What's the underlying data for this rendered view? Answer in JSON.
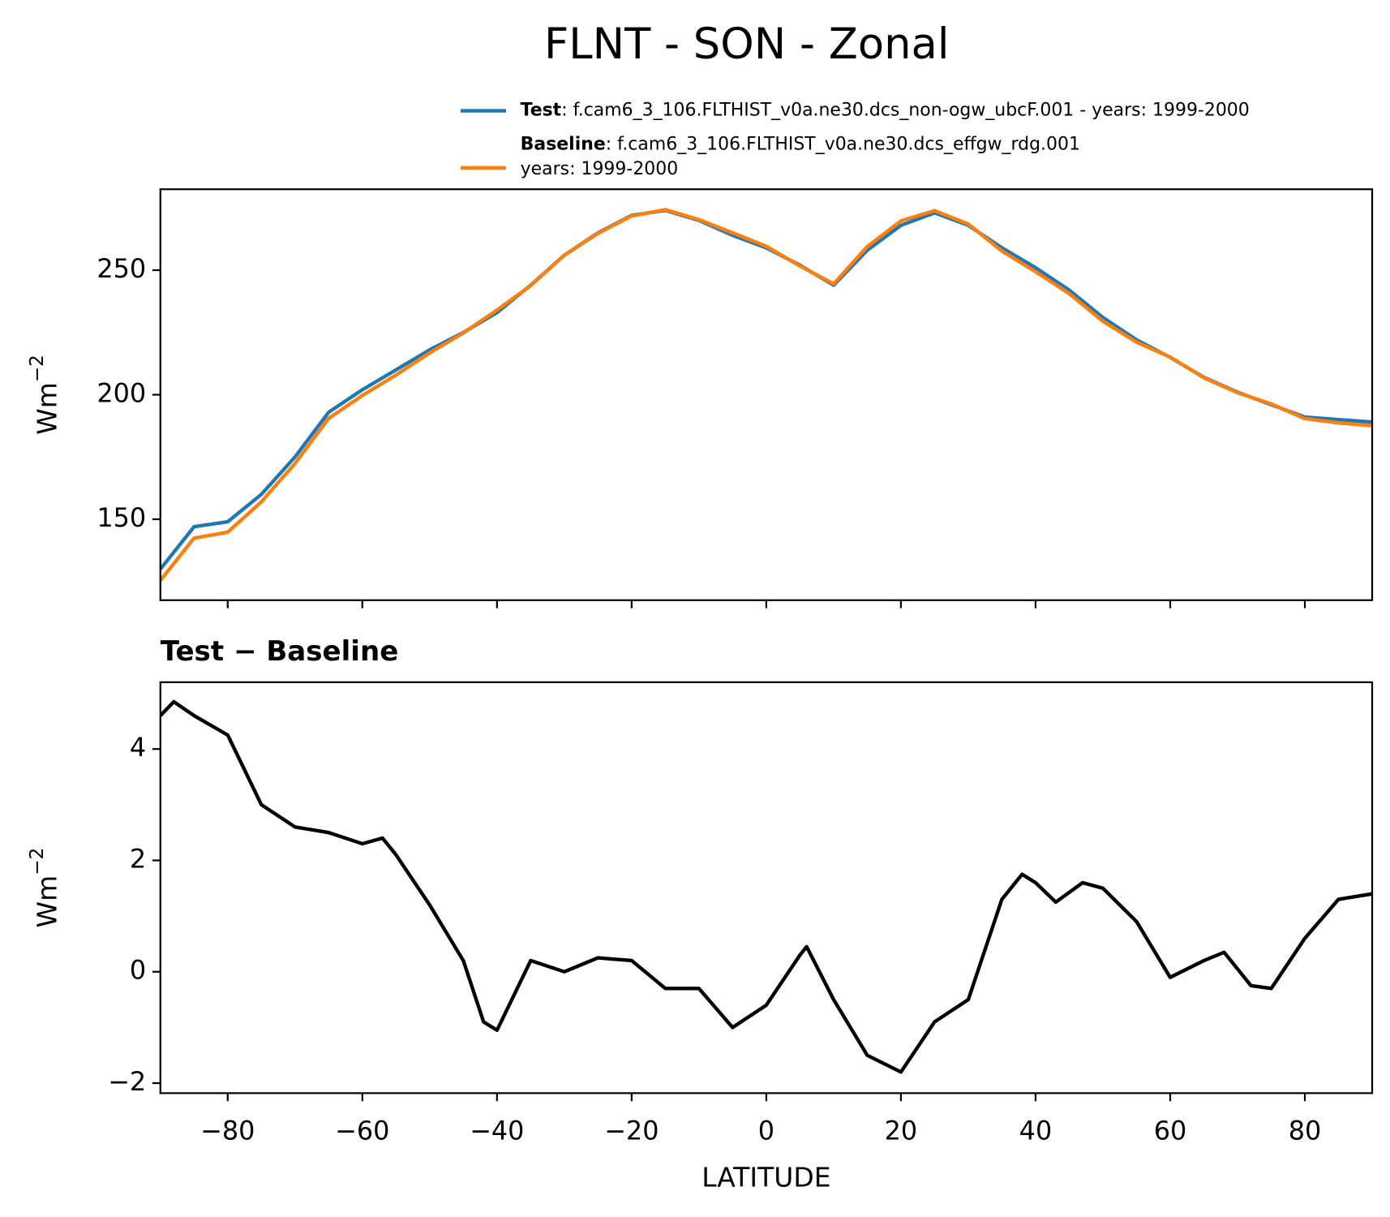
{
  "title": "FLNT - SON - Zonal",
  "chart_data": [
    {
      "type": "line",
      "xlim": [
        -90,
        90
      ],
      "ylim": [
        117.5,
        282.5
      ],
      "xticks": [
        -80,
        -60,
        -40,
        -20,
        0,
        20,
        40,
        60,
        80
      ],
      "xtick_labels_shown": false,
      "yticks": [
        150,
        200,
        250
      ],
      "ylabel": [
        "Wm",
        "−2"
      ],
      "x": [
        -90,
        -85,
        -80,
        -75,
        -70,
        -65,
        -60,
        -55,
        -50,
        -45,
        -40,
        -35,
        -30,
        -25,
        -20,
        -15,
        -10,
        -5,
        0,
        5,
        10,
        15,
        20,
        25,
        30,
        35,
        40,
        45,
        50,
        55,
        60,
        65,
        70,
        75,
        80,
        85,
        90
      ],
      "series": [
        {
          "name": "Test",
          "description": [
            ": f.cam6_3_106.FLTHIST_v0a.ne30.dcs_non-ogw_ubcF.001 - years: 1999-2000"
          ],
          "color": "#1f77b4",
          "values": [
            130,
            147,
            149,
            160,
            175,
            193,
            202,
            210,
            218,
            225,
            233,
            244,
            256,
            265,
            272,
            274,
            270,
            264,
            259,
            252,
            244,
            258,
            268,
            273,
            268,
            259,
            251,
            242,
            231,
            222,
            215,
            207,
            201,
            196,
            191,
            190,
            189
          ]
        },
        {
          "name": "Baseline",
          "description": [
            ": f.cam6_3_106.FLTHIST_v0a.ne30.dcs_effgw_rdg.001",
            "years: 1999-2000"
          ],
          "color": "#ff7f0e",
          "values": [
            125.4,
            142.4,
            144.8,
            157,
            172.4,
            190.5,
            199.7,
            207.9,
            216.8,
            224.8,
            234,
            243.8,
            256,
            264.8,
            271.8,
            274.3,
            270.3,
            265,
            259.6,
            251.7,
            244.5,
            259.5,
            269.8,
            273.9,
            268.5,
            257.7,
            249.4,
            240.6,
            229.5,
            221.1,
            215.1,
            206.8,
            200.8,
            196.3,
            190.4,
            188.7,
            187.6
          ]
        }
      ]
    },
    {
      "type": "line",
      "title": "Test − Baseline",
      "xlim": [
        -90,
        90
      ],
      "ylim": [
        -2.18,
        5.2
      ],
      "xticks": [
        {
          "value": -80,
          "label": "−80"
        },
        {
          "value": -60,
          "label": "−60"
        },
        {
          "value": -40,
          "label": "−40"
        },
        {
          "value": -20,
          "label": "−20"
        },
        0,
        20,
        40,
        60,
        80
      ],
      "xtick_labels_shown": true,
      "yticks": [
        {
          "value": -2,
          "label": "−2"
        },
        0,
        2,
        4
      ],
      "xlabel": "LATITUDE",
      "ylabel": [
        "Wm",
        "−2"
      ],
      "x": [
        -90,
        -88,
        -85,
        -80,
        -75,
        -70,
        -65,
        -60,
        -57,
        -55,
        -50,
        -45,
        -42,
        -40,
        -35,
        -30,
        -25,
        -20,
        -15,
        -10,
        -5,
        0,
        5,
        6,
        10,
        15,
        20,
        25,
        30,
        35,
        38,
        40,
        43,
        47,
        50,
        55,
        60,
        65,
        68,
        72,
        75,
        80,
        85,
        90
      ],
      "series": [
        {
          "color": "#000000",
          "values": [
            4.6,
            4.85,
            4.6,
            4.25,
            3.0,
            2.6,
            2.5,
            2.3,
            2.4,
            2.1,
            1.2,
            0.2,
            -0.9,
            -1.05,
            0.2,
            0.0,
            0.25,
            0.2,
            -0.3,
            -0.3,
            -1.0,
            -0.6,
            0.3,
            0.45,
            -0.5,
            -1.5,
            -1.8,
            -0.9,
            -0.5,
            1.3,
            1.75,
            1.6,
            1.25,
            1.6,
            1.5,
            0.9,
            -0.1,
            0.2,
            0.35,
            -0.25,
            -0.3,
            0.6,
            1.3,
            1.4
          ]
        }
      ]
    }
  ]
}
